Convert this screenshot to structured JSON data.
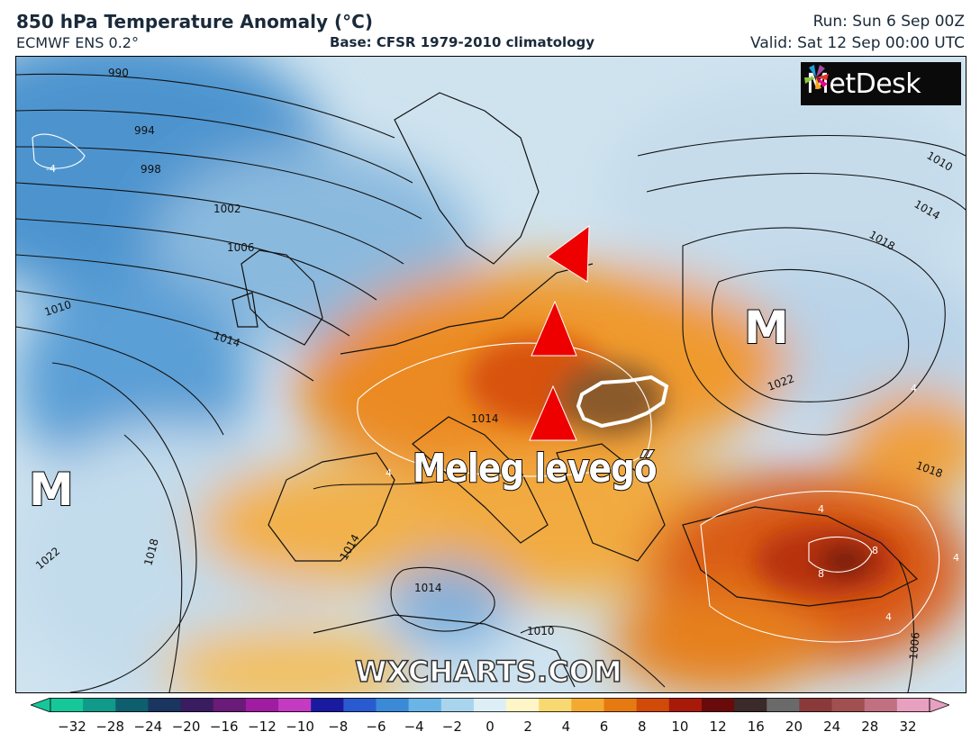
{
  "header": {
    "title": "850 hPa Temperature Anomaly (°C)",
    "model": "ECMWF ENS 0.2°",
    "base": "Base: CFSR 1979-2010 climatology",
    "run": "Run: Sun 6 Sep 00Z",
    "valid": "Valid: Sat 12 Sep 00:00 UTC"
  },
  "logo": {
    "text": "MetDesk",
    "icon": "metdesk-pinwheel-icon"
  },
  "map": {
    "pressure_labels": [
      "990",
      "994",
      "998",
      "1002",
      "1006",
      "1010",
      "1014",
      "1010",
      "1014",
      "1018",
      "1022",
      "1022",
      "1018",
      "1014",
      "1014",
      "1014",
      "1010",
      "1006",
      "1018"
    ],
    "anomaly_labels": [
      "-4",
      "4",
      "4",
      "4",
      "4",
      "8",
      "8",
      "4"
    ],
    "pressure_centres": [
      "M",
      "M"
    ],
    "annotation": "Meleg levegő",
    "arrow_icons": [
      "red-triangle-arrow-icon",
      "red-triangle-arrow-icon",
      "red-triangle-arrow-icon"
    ],
    "highlight": "hungary-outline",
    "watermark": "WXCHARTS.COM"
  },
  "colorbar": {
    "ticks": [
      "−32",
      "−28",
      "−24",
      "−20",
      "−16",
      "−12",
      "−10",
      "−8",
      "−6",
      "−4",
      "−2",
      "0",
      "2",
      "4",
      "6",
      "8",
      "10",
      "12",
      "16",
      "20",
      "24",
      "28",
      "32"
    ],
    "colors": [
      "#16c79a",
      "#0f9a8a",
      "#0d5f6e",
      "#1a3560",
      "#3a1c60",
      "#6a1a78",
      "#a01ca0",
      "#c43ac0",
      "#1a1aa0",
      "#2a5ad0",
      "#3a8ad8",
      "#6ab4e6",
      "#a8d4ee",
      "#dceef6",
      "#fff6c8",
      "#f8d870",
      "#f4aa30",
      "#e67a10",
      "#d04a08",
      "#a81a08",
      "#6a0a0a",
      "#3a2a2a",
      "#6a6a6a",
      "#8a3a3a",
      "#a05050",
      "#c07080",
      "#e8a0c0"
    ]
  }
}
